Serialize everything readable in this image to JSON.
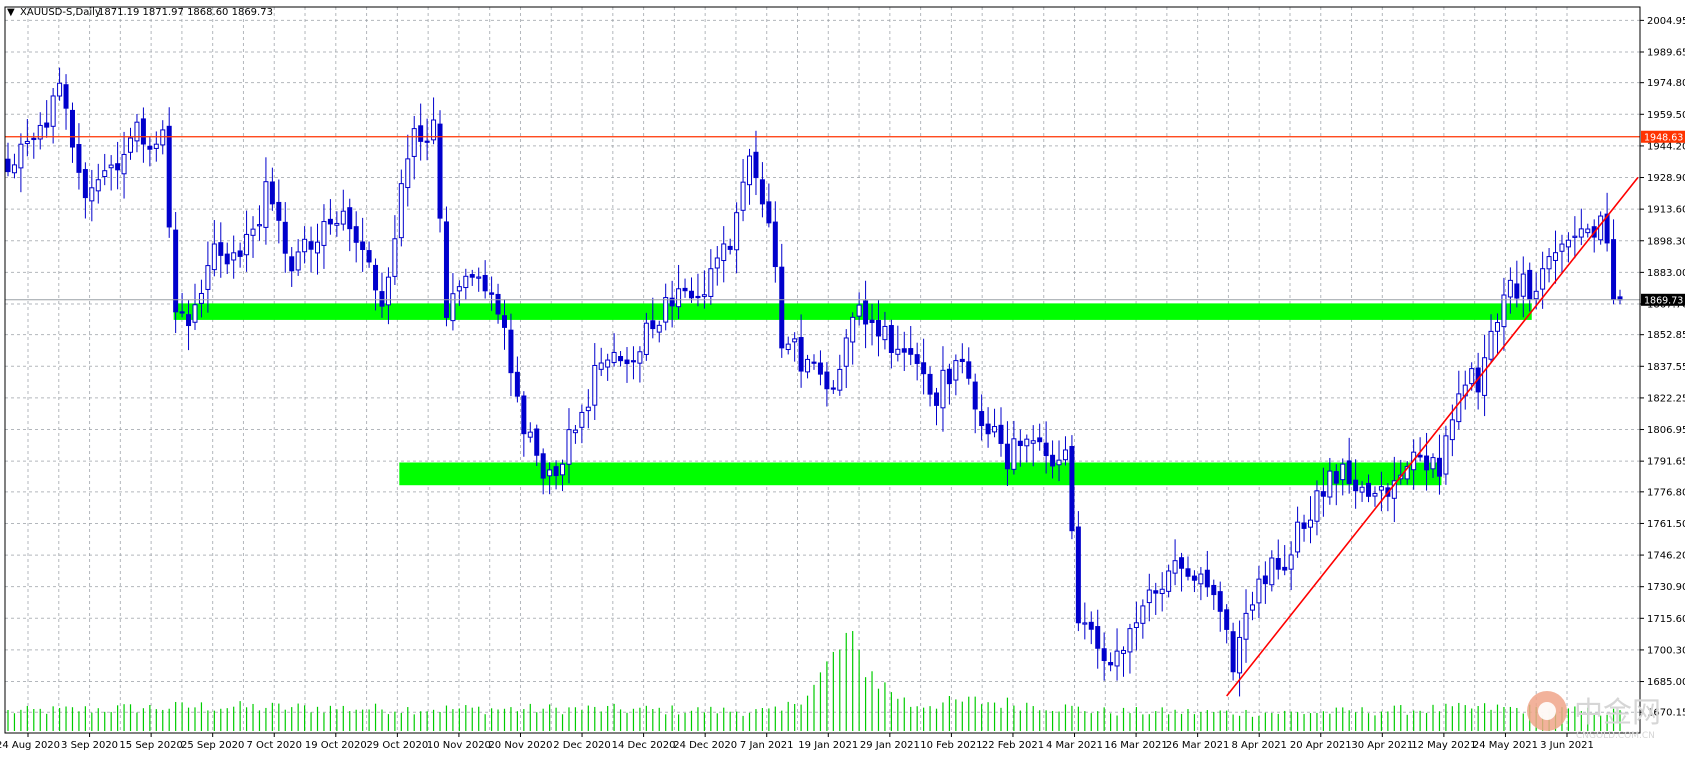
{
  "header": {
    "arrow": "▼",
    "symbol": "XAUUSD-S,Daily",
    "ohlc": "1871.19 1871.97 1868.60 1869.73"
  },
  "colors": {
    "background": "#ffffff",
    "grid": "#9aa0a6",
    "candle": "#0000cc",
    "volume": "#00cc00",
    "zone": "#00ff00",
    "resistance_line": "#ff3300",
    "trend_line": "#ff0000",
    "price_tag_bg": "#ff3300",
    "current_tag_bg": "#000000"
  },
  "watermark": {
    "brand": "中金网",
    "site": "CNGOLD.COM.CN"
  },
  "chart_data": {
    "type": "candlestick",
    "symbol": "XAUUSD-S",
    "timeframe": "Daily",
    "y_range": [
      1663.0,
      2009.0
    ],
    "y_ticks": [
      "2004.95",
      "1989.65",
      "1974.80",
      "1959.50",
      "1944.20",
      "1928.90",
      "1913.60",
      "1898.30",
      "1883.00",
      "1867.70",
      "1852.85",
      "1837.55",
      "1822.25",
      "1806.95",
      "1791.65",
      "1776.80",
      "1761.50",
      "1746.20",
      "1730.90",
      "1715.60",
      "1700.30",
      "1685.00",
      "1670.15"
    ],
    "x_labels": [
      "24 Aug 2020",
      "3 Sep 2020",
      "15 Sep 2020",
      "25 Sep 2020",
      "7 Oct 2020",
      "19 Oct 2020",
      "29 Oct 2020",
      "10 Nov 2020",
      "20 Nov 2020",
      "2 Dec 2020",
      "14 Dec 2020",
      "24 Dec 2020",
      "7 Jan 2021",
      "19 Jan 2021",
      "29 Jan 2021",
      "10 Feb 2021",
      "22 Feb 2021",
      "4 Mar 2021",
      "16 Mar 2021",
      "26 Mar 2021",
      "8 Apr 2021",
      "20 Apr 2021",
      "30 Apr 2021",
      "12 May 2021",
      "24 May 2021",
      "3 Jun 2021"
    ],
    "resistance_level": {
      "value": 1948.63,
      "label": "1948.63"
    },
    "current_price": {
      "value": 1869.73,
      "label": "1869.73"
    },
    "zones": [
      {
        "name": "upper-support-zone",
        "from_bar": 26,
        "to_bar": 236,
        "low": 1860.0,
        "high": 1868.0
      },
      {
        "name": "lower-support-zone",
        "from_bar": 61,
        "to_bar": 222,
        "low": 1780.0,
        "high": 1791.0
      }
    ],
    "trend_line": {
      "from_bar": 189,
      "from_price": 1678.0,
      "to_bar": 250,
      "to_price": 1929.0
    },
    "anchors": [
      [
        0,
        1935
      ],
      [
        4,
        1945
      ],
      [
        8,
        1970
      ],
      [
        12,
        1925
      ],
      [
        16,
        1935
      ],
      [
        20,
        1950
      ],
      [
        24,
        1948
      ],
      [
        26,
        1862
      ],
      [
        29,
        1863
      ],
      [
        32,
        1895
      ],
      [
        36,
        1890
      ],
      [
        40,
        1920
      ],
      [
        44,
        1888
      ],
      [
        48,
        1898
      ],
      [
        52,
        1910
      ],
      [
        56,
        1885
      ],
      [
        58,
        1870
      ],
      [
        63,
        1955
      ],
      [
        66,
        1950
      ],
      [
        68,
        1860
      ],
      [
        71,
        1878
      ],
      [
        76,
        1868
      ],
      [
        80,
        1805
      ],
      [
        84,
        1785
      ],
      [
        87,
        1800
      ],
      [
        92,
        1840
      ],
      [
        96,
        1835
      ],
      [
        100,
        1862
      ],
      [
        104,
        1870
      ],
      [
        108,
        1878
      ],
      [
        112,
        1900
      ],
      [
        115,
        1945
      ],
      [
        118,
        1910
      ],
      [
        120,
        1852
      ],
      [
        124,
        1838
      ],
      [
        128,
        1832
      ],
      [
        132,
        1865
      ],
      [
        136,
        1853
      ],
      [
        140,
        1845
      ],
      [
        144,
        1825
      ],
      [
        147,
        1840
      ],
      [
        151,
        1815
      ],
      [
        155,
        1790
      ],
      [
        158,
        1808
      ],
      [
        162,
        1790
      ],
      [
        164,
        1795
      ],
      [
        166,
        1720
      ],
      [
        170,
        1690
      ],
      [
        174,
        1710
      ],
      [
        176,
        1722
      ],
      [
        182,
        1740
      ],
      [
        186,
        1730
      ],
      [
        190,
        1695
      ],
      [
        194,
        1735
      ],
      [
        198,
        1745
      ],
      [
        202,
        1770
      ],
      [
        206,
        1785
      ],
      [
        210,
        1780
      ],
      [
        214,
        1775
      ],
      [
        218,
        1790
      ],
      [
        222,
        1790
      ],
      [
        224,
        1815
      ],
      [
        226,
        1835
      ],
      [
        228,
        1825
      ],
      [
        230,
        1850
      ],
      [
        233,
        1878
      ],
      [
        236,
        1875
      ],
      [
        240,
        1898
      ],
      [
        244,
        1900
      ],
      [
        246,
        1907
      ],
      [
        248,
        1904
      ],
      [
        249,
        1870
      ],
      [
        250,
        1869.73
      ]
    ],
    "volume_scale": [
      0,
      1000
    ],
    "volume_anchors": [
      [
        0,
        150
      ],
      [
        30,
        190
      ],
      [
        60,
        170
      ],
      [
        90,
        170
      ],
      [
        120,
        150
      ],
      [
        125,
        350
      ],
      [
        130,
        700
      ],
      [
        135,
        380
      ],
      [
        140,
        200
      ],
      [
        150,
        230
      ],
      [
        160,
        200
      ],
      [
        170,
        150
      ],
      [
        200,
        140
      ],
      [
        230,
        180
      ],
      [
        250,
        140
      ]
    ]
  }
}
